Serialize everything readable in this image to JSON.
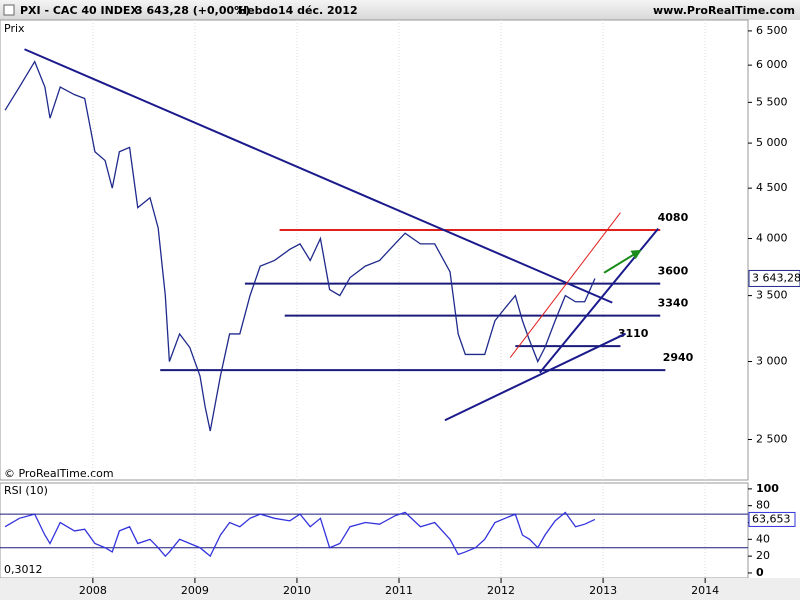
{
  "header": {
    "symbol": "PXI - CAC 40 INDEX",
    "quote": "3 643,28 (+0,00%)",
    "period": "Hebdo",
    "date": "14 déc. 2012",
    "site": "www.ProRealTime.com"
  },
  "chart_data": [
    {
      "type": "line",
      "title": "Prix",
      "footer": "© ProRealTime.com",
      "log_scale": true,
      "grid": true,
      "x": [
        2007.14,
        2007.28,
        2007.43,
        2007.53,
        2007.58,
        2007.68,
        2007.82,
        2007.92,
        2008.02,
        2008.12,
        2008.19,
        2008.26,
        2008.36,
        2008.44,
        2008.56,
        2008.64,
        2008.71,
        2008.75,
        2008.85,
        2008.95,
        2009.05,
        2009.1,
        2009.15,
        2009.25,
        2009.34,
        2009.44,
        2009.54,
        2009.64,
        2009.78,
        2009.93,
        2010.03,
        2010.13,
        2010.23,
        2010.32,
        2010.42,
        2010.52,
        2010.67,
        2010.81,
        2010.96,
        2011.06,
        2011.21,
        2011.35,
        2011.5,
        2011.58,
        2011.65,
        2011.75,
        2011.84,
        2011.94,
        2012.04,
        2012.14,
        2012.21,
        2012.28,
        2012.36,
        2012.43,
        2012.53,
        2012.63,
        2012.73,
        2012.82,
        2012.92
      ],
      "series": [
        {
          "name": "CAC 40",
          "color": "#1f2a8c",
          "values": [
            5400,
            5700,
            6050,
            5700,
            5300,
            5700,
            5600,
            5550,
            4900,
            4800,
            4500,
            4900,
            4950,
            4300,
            4400,
            4100,
            3500,
            3000,
            3200,
            3100,
            2900,
            2700,
            2550,
            2900,
            3200,
            3200,
            3500,
            3750,
            3800,
            3900,
            3950,
            3800,
            4000,
            3550,
            3500,
            3650,
            3750,
            3800,
            3950,
            4050,
            3950,
            3950,
            3700,
            3200,
            3050,
            3050,
            3050,
            3300,
            3400,
            3500,
            3300,
            3150,
            3000,
            3100,
            3300,
            3500,
            3450,
            3450,
            3643.28
          ]
        }
      ],
      "last_value": {
        "value": 3643.28,
        "label": "3 643,28"
      },
      "xlim": [
        2007.09,
        2014.42
      ],
      "xticks": [
        2008,
        2009,
        2010,
        2011,
        2012,
        2013,
        2014
      ],
      "ylim": [
        2274,
        6668
      ],
      "yticks": [
        {
          "value": 2500,
          "label": "2 500"
        },
        {
          "value": 3000,
          "label": "3 000"
        },
        {
          "value": 3500,
          "label": "3 500"
        },
        {
          "value": 4000,
          "label": "4 000"
        },
        {
          "value": 4500,
          "label": "4 500"
        },
        {
          "value": 5000,
          "label": "5 000"
        },
        {
          "value": 5500,
          "label": "5 500"
        },
        {
          "value": 6000,
          "label": "6 000"
        },
        {
          "value": 6500,
          "label": "6 500"
        }
      ],
      "levels": [
        {
          "value": 4080,
          "x": [
            2009.83,
            2013.56
          ],
          "color": "#e0201c"
        },
        {
          "value": 3600,
          "x": [
            2009.49,
            2013.56
          ],
          "color": "#1a1a7a"
        },
        {
          "value": 3340,
          "x": [
            2009.88,
            2013.56
          ],
          "color": "#1a1a7a"
        },
        {
          "value": 3110,
          "x": [
            2012.14,
            2013.17
          ],
          "color": "#1a1a7a"
        },
        {
          "value": 2940,
          "x": [
            2008.66,
            2013.61
          ],
          "color": "#1a1a7a"
        }
      ],
      "trendlines": [
        {
          "x": [
            2007.33,
            2013.09
          ],
          "y": [
            6227,
            3443
          ],
          "color": "#1a1a8c"
        },
        {
          "x": [
            2011.45,
            2013.22
          ],
          "y": [
            2615,
            3202
          ],
          "color": "#1a1a8c"
        },
        {
          "x": [
            2012.38,
            2013.54
          ],
          "y": [
            2923,
            4094
          ],
          "color": "#1a1a8c"
        },
        {
          "x": [
            2012.09,
            2013.17
          ],
          "y": [
            3028,
            4249
          ],
          "color": "#e0201c"
        },
        {
          "x": [
            2013.01,
            2013.36
          ],
          "y": [
            3692,
            3886
          ],
          "color": "#1a8c1a",
          "arrow": true
        }
      ]
    },
    {
      "type": "line",
      "title": "RSI (10)",
      "footer": "0,3012",
      "series": [
        {
          "name": "RSI",
          "color": "#3333dd",
          "values": [
            55,
            65,
            70,
            45,
            35,
            60,
            50,
            52,
            35,
            30,
            25,
            50,
            55,
            35,
            40,
            30,
            20,
            25,
            40,
            35,
            30,
            25,
            20,
            45,
            60,
            55,
            65,
            70,
            65,
            62,
            70,
            55,
            65,
            30,
            35,
            55,
            60,
            58,
            68,
            72,
            55,
            60,
            40,
            22,
            25,
            30,
            40,
            60,
            65,
            70,
            45,
            40,
            30,
            45,
            62,
            72,
            55,
            58,
            63.653
          ]
        }
      ],
      "last_value": {
        "value": 63.653,
        "label": "63,653"
      },
      "ylim": [
        -6,
        107
      ],
      "yticks": [
        0,
        20,
        40,
        60,
        80,
        100
      ],
      "bands": [
        70,
        30
      ]
    }
  ]
}
